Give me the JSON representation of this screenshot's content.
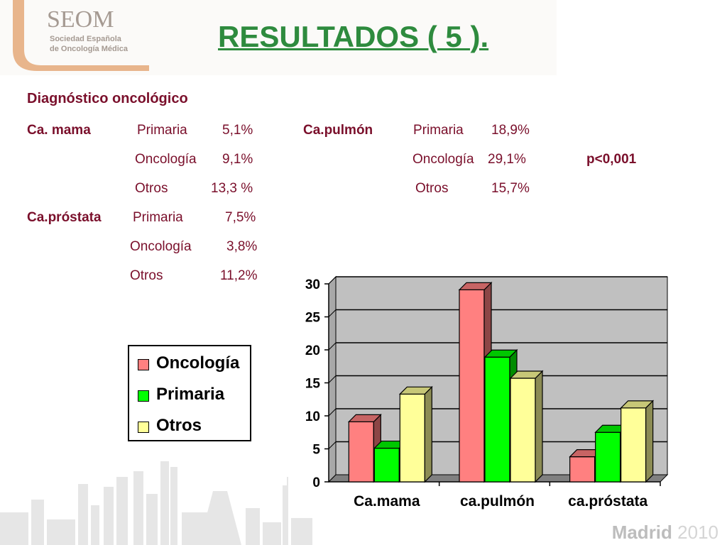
{
  "logo": {
    "name": "SEOM",
    "line1": "Sociedad Española",
    "line2": "de Oncología Médica"
  },
  "title": "RESULTADOS ( 5 ).",
  "section_heading": "Diagnóstico oncológico",
  "breakdown": {
    "mama": {
      "label": "Ca. mama",
      "primaria_label": "Primaria",
      "primaria_val": "5,1%",
      "oncologia_label": "Oncología",
      "oncologia_val": "9,1%",
      "otros_label": "Otros",
      "otros_val": "13,3 %"
    },
    "pulmon": {
      "label": "Ca.pulmón",
      "primaria_label": "Primaria",
      "primaria_val": "18,9%",
      "oncologia_label": "Oncología",
      "oncologia_val": "29,1%",
      "otros_label": "Otros",
      "otros_val": "15,7%"
    },
    "prostata": {
      "label": "Ca.próstata",
      "primaria_label": "Primaria",
      "primaria_val": "7,5%",
      "oncologia_label": "Oncología",
      "oncologia_val": "3,8%",
      "otros_label": "Otros",
      "otros_val": "11,2%"
    },
    "pvalue": "p<0,001"
  },
  "footer": {
    "city": "Madrid",
    "year": "2010"
  },
  "colors": {
    "oncologia": "#ff8080",
    "primaria": "#00ff00",
    "otros": "#ffff99",
    "plot_bg": "#c0c0c0",
    "title": "#2e8b3e",
    "text": "#7a0f2b"
  },
  "chart_data": {
    "type": "bar",
    "categories": [
      "Ca.mama",
      "ca.pulmón",
      "ca.próstata"
    ],
    "series": [
      {
        "name": "Oncología",
        "values": [
          9.1,
          29.1,
          3.8
        ]
      },
      {
        "name": "Primaria",
        "values": [
          5.1,
          18.9,
          7.5
        ]
      },
      {
        "name": "Otros",
        "values": [
          13.3,
          15.7,
          11.2
        ]
      }
    ],
    "ylim": [
      0,
      30
    ],
    "yticks": [
      0,
      5,
      10,
      15,
      20,
      25,
      30
    ],
    "grid": true,
    "legend_position": "left"
  }
}
